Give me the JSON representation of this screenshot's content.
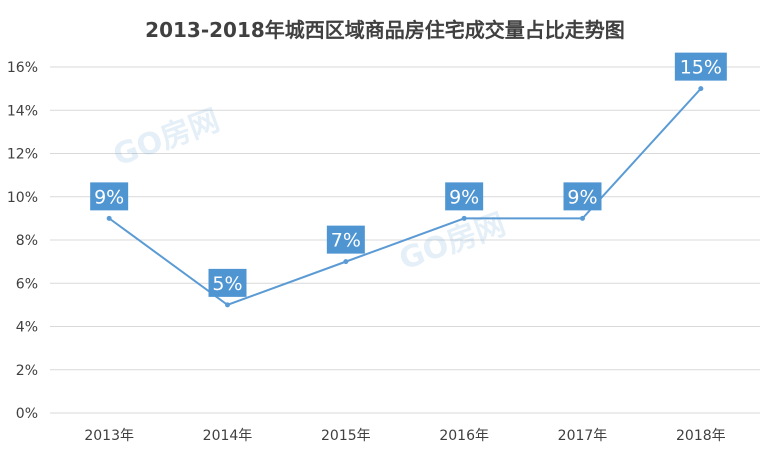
{
  "chart_data": {
    "type": "line",
    "title": "2013-2018年城西区域商品房住宅成交量占比走势图",
    "categories": [
      "2013年",
      "2014年",
      "2015年",
      "2016年",
      "2017年",
      "2018年"
    ],
    "series": [
      {
        "values": [
          9,
          5,
          7,
          9,
          9,
          15
        ]
      }
    ],
    "data_labels": [
      "9%",
      "5%",
      "7%",
      "9%",
      "9%",
      "15%"
    ],
    "y_ticks": [
      "0%",
      "2%",
      "4%",
      "6%",
      "8%",
      "10%",
      "12%",
      "14%",
      "16%"
    ],
    "ylim": [
      0,
      16
    ],
    "grid": true,
    "legend": "none",
    "color": "#5b9bd5"
  },
  "watermark": {
    "text": "GO房网"
  }
}
